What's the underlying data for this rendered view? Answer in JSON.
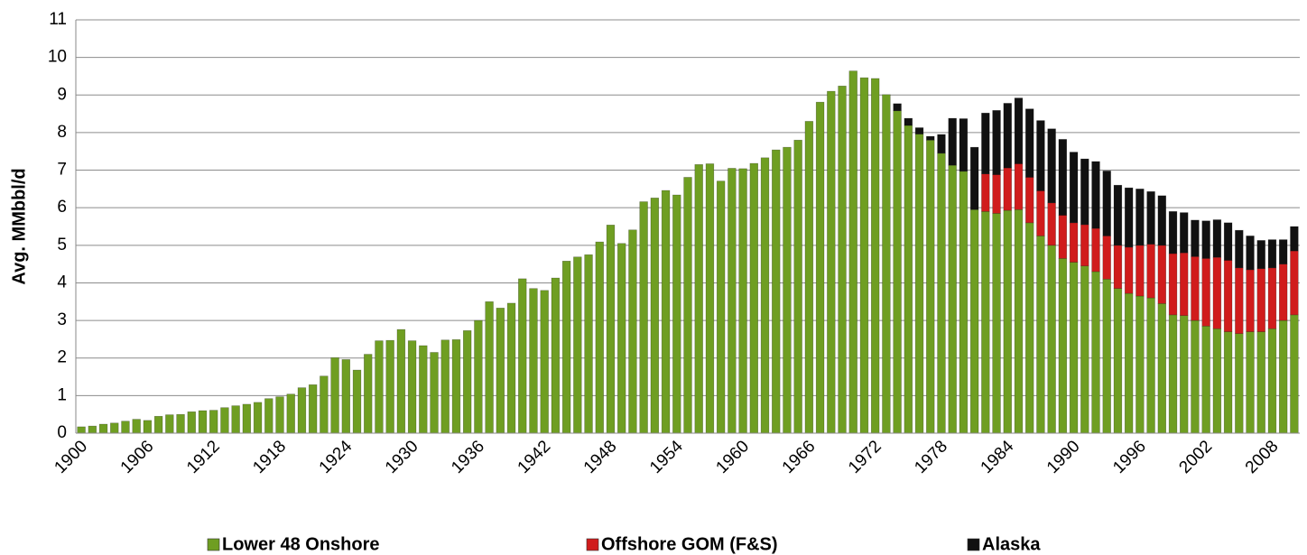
{
  "chart_data": {
    "type": "stacked_bar",
    "y_label": "Avg. MMbbl/d",
    "categories": [
      "1900",
      null,
      null,
      null,
      null,
      null,
      "1906",
      null,
      null,
      null,
      null,
      null,
      "1912",
      null,
      null,
      null,
      null,
      null,
      "1918",
      null,
      null,
      null,
      null,
      null,
      "1924",
      null,
      null,
      null,
      null,
      null,
      "1930",
      null,
      null,
      null,
      null,
      null,
      "1936",
      null,
      null,
      null,
      null,
      null,
      "1942",
      null,
      null,
      null,
      null,
      null,
      "1948",
      null,
      null,
      null,
      null,
      null,
      "1954",
      null,
      null,
      null,
      null,
      null,
      "1960",
      null,
      null,
      null,
      null,
      null,
      "1966",
      null,
      null,
      null,
      null,
      null,
      "1972",
      null,
      null,
      null,
      null,
      null,
      "1978",
      null,
      null,
      null,
      null,
      null,
      "1984",
      null,
      null,
      null,
      null,
      null,
      "1990",
      null,
      null,
      null,
      null,
      null,
      "1996",
      null,
      null,
      null,
      null,
      null,
      "2002",
      null,
      null,
      null,
      null,
      null,
      "2008",
      null,
      null
    ],
    "series": [
      {
        "name": "Lower 48 Onshore",
        "color": "#6f9e22",
        "values": [
          0.17,
          0.19,
          0.24,
          0.27,
          0.32,
          0.37,
          0.34,
          0.45,
          0.49,
          0.5,
          0.57,
          0.6,
          0.61,
          0.68,
          0.73,
          0.77,
          0.82,
          0.92,
          0.97,
          1.04,
          1.21,
          1.29,
          1.52,
          2.01,
          1.96,
          1.68,
          2.1,
          2.46,
          2.47,
          2.76,
          2.46,
          2.33,
          2.15,
          2.48,
          2.49,
          2.73,
          3.0,
          3.5,
          3.33,
          3.46,
          4.11,
          3.85,
          3.8,
          4.13,
          4.58,
          4.69,
          4.75,
          5.09,
          5.54,
          5.05,
          5.41,
          6.16,
          6.26,
          6.46,
          6.34,
          6.81,
          7.15,
          7.17,
          6.71,
          7.05,
          7.04,
          7.18,
          7.33,
          7.54,
          7.61,
          7.8,
          8.3,
          8.81,
          9.1,
          9.24,
          9.64,
          9.46,
          9.44,
          9.01,
          8.58,
          8.19,
          7.96,
          7.8,
          7.45,
          7.13,
          6.97,
          5.95,
          5.9,
          5.85,
          5.93,
          5.95,
          5.6,
          5.25,
          5.0,
          4.65,
          4.55,
          4.45,
          4.3,
          4.1,
          3.85,
          3.72,
          3.65,
          3.6,
          3.45,
          3.15,
          3.13,
          3.0,
          2.85,
          2.78,
          2.7,
          2.65,
          2.7,
          2.7,
          2.78,
          3.0,
          3.15
        ]
      },
      {
        "name": "Offshore GOM (F&S)",
        "color": "#d01c1c",
        "values": [
          0,
          0,
          0,
          0,
          0,
          0,
          0,
          0,
          0,
          0,
          0,
          0,
          0,
          0,
          0,
          0,
          0,
          0,
          0,
          0,
          0,
          0,
          0,
          0,
          0,
          0,
          0,
          0,
          0,
          0,
          0,
          0,
          0,
          0,
          0,
          0,
          0,
          0,
          0,
          0,
          0,
          0,
          0,
          0,
          0,
          0,
          0,
          0,
          0,
          0,
          0,
          0,
          0,
          0,
          0,
          0,
          0,
          0,
          0,
          0,
          0,
          0,
          0,
          0,
          0,
          0,
          0,
          0,
          0,
          0,
          0,
          0,
          0,
          0,
          0,
          0,
          0,
          0,
          0,
          0,
          0,
          0,
          1.0,
          1.03,
          1.13,
          1.22,
          1.21,
          1.2,
          1.13,
          1.15,
          1.05,
          1.1,
          1.15,
          1.15,
          1.15,
          1.23,
          1.35,
          1.43,
          1.55,
          1.63,
          1.67,
          1.7,
          1.8,
          1.9,
          1.9,
          1.75,
          1.65,
          1.68,
          1.62,
          1.5,
          1.7
        ]
      },
      {
        "name": "Alaska",
        "color": "#111111",
        "values": [
          0,
          0,
          0,
          0,
          0,
          0,
          0,
          0,
          0,
          0,
          0,
          0,
          0,
          0,
          0,
          0,
          0,
          0,
          0,
          0,
          0,
          0,
          0,
          0,
          0,
          0,
          0,
          0,
          0,
          0,
          0,
          0,
          0,
          0,
          0,
          0,
          0,
          0,
          0,
          0,
          0,
          0,
          0,
          0,
          0,
          0,
          0,
          0,
          0,
          0,
          0,
          0,
          0,
          0,
          0,
          0,
          0,
          0,
          0,
          0,
          0,
          0,
          0,
          0,
          0,
          0,
          0,
          0,
          0,
          0,
          0,
          0,
          0,
          0,
          0.19,
          0.19,
          0.17,
          0.1,
          0.5,
          1.25,
          1.4,
          1.66,
          1.62,
          1.71,
          1.72,
          1.75,
          1.82,
          1.87,
          1.97,
          2.02,
          1.88,
          1.75,
          1.78,
          1.73,
          1.6,
          1.58,
          1.5,
          1.4,
          1.32,
          1.12,
          1.07,
          0.97,
          1.0,
          1.0,
          1.0,
          1.0,
          0.9,
          0.75,
          0.75,
          0.65,
          0.65
        ]
      }
    ],
    "ylim": [
      0,
      11
    ],
    "yticks": [
      0,
      1,
      2,
      3,
      4,
      5,
      6,
      7,
      8,
      9,
      10,
      11
    ],
    "grid": true,
    "legend": "bottom"
  }
}
